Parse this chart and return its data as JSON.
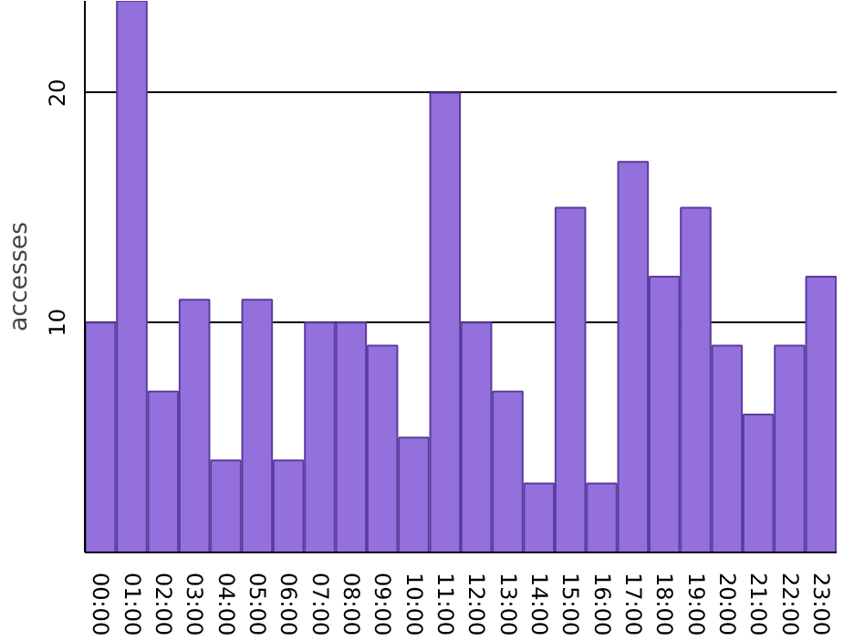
{
  "chart_data": {
    "type": "bar",
    "ylabel": "accesses",
    "categories": [
      "00:00",
      "01:00",
      "02:00",
      "03:00",
      "04:00",
      "05:00",
      "06:00",
      "07:00",
      "08:00",
      "09:00",
      "10:00",
      "11:00",
      "12:00",
      "13:00",
      "14:00",
      "15:00",
      "16:00",
      "17:00",
      "18:00",
      "19:00",
      "20:00",
      "21:00",
      "22:00",
      "23:00"
    ],
    "values": [
      10,
      24,
      7,
      11,
      4,
      11,
      4,
      10,
      10,
      9,
      5,
      20,
      10,
      7,
      3,
      15,
      3,
      17,
      12,
      15,
      9,
      6,
      9,
      12
    ],
    "color": "#9370db",
    "ylim": [
      0,
      24
    ],
    "yticks": [
      10,
      20
    ],
    "grid": "y"
  }
}
